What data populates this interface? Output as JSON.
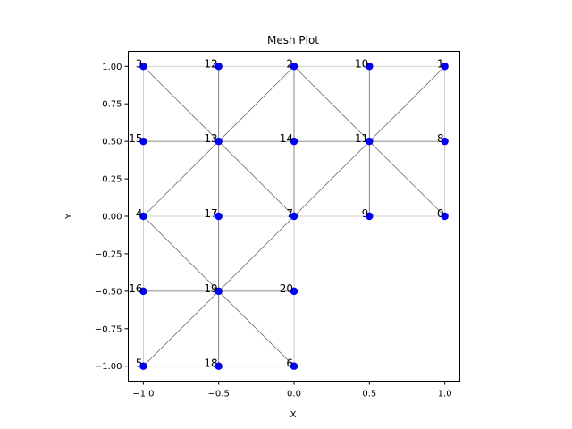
{
  "chart_data": {
    "type": "scatter",
    "title": "Mesh Plot",
    "xlabel": "X",
    "ylabel": "Y",
    "xlim": [
      -1.1,
      1.1
    ],
    "ylim": [
      -1.1,
      1.1
    ],
    "x_ticks": [
      -1.0,
      -0.5,
      0.0,
      0.5,
      1.0
    ],
    "x_tick_labels": [
      "−1.0",
      "−0.5",
      "0.0",
      "0.5",
      "1.0"
    ],
    "y_ticks": [
      -1.0,
      -0.75,
      -0.5,
      -0.25,
      0.0,
      0.25,
      0.5,
      0.75,
      1.0
    ],
    "y_tick_labels": [
      "−1.00",
      "−0.75",
      "−0.50",
      "−0.25",
      "0.00",
      "0.25",
      "0.50",
      "0.75",
      "1.00"
    ],
    "grid": false,
    "colors": {
      "points": "#0000ff",
      "diagonal_edges": "#666666",
      "boundary_edges": "#c0c0c0"
    },
    "nodes": [
      {
        "id": "0",
        "x": 1.0,
        "y": 0.0
      },
      {
        "id": "1",
        "x": 1.0,
        "y": 1.0
      },
      {
        "id": "2",
        "x": 0.0,
        "y": 1.0
      },
      {
        "id": "3",
        "x": -1.0,
        "y": 1.0
      },
      {
        "id": "4",
        "x": -1.0,
        "y": 0.0
      },
      {
        "id": "5",
        "x": -1.0,
        "y": -1.0
      },
      {
        "id": "6",
        "x": 0.0,
        "y": -1.0
      },
      {
        "id": "7",
        "x": 0.0,
        "y": 0.0
      },
      {
        "id": "8",
        "x": 1.0,
        "y": 0.5
      },
      {
        "id": "9",
        "x": 0.5,
        "y": 0.0
      },
      {
        "id": "10",
        "x": 0.5,
        "y": 1.0
      },
      {
        "id": "11",
        "x": 0.5,
        "y": 0.5
      },
      {
        "id": "12",
        "x": -0.5,
        "y": 1.0
      },
      {
        "id": "13",
        "x": -0.5,
        "y": 0.5
      },
      {
        "id": "14",
        "x": 0.0,
        "y": 0.5
      },
      {
        "id": "15",
        "x": -1.0,
        "y": 0.5
      },
      {
        "id": "16",
        "x": -1.0,
        "y": -0.5
      },
      {
        "id": "17",
        "x": -0.5,
        "y": 0.0
      },
      {
        "id": "18",
        "x": -0.5,
        "y": -1.0
      },
      {
        "id": "19",
        "x": -0.5,
        "y": -0.5
      },
      {
        "id": "20",
        "x": 0.0,
        "y": -0.5
      }
    ],
    "diagonal_edges": [
      [
        3,
        13
      ],
      [
        13,
        7
      ],
      [
        2,
        13
      ],
      [
        13,
        4
      ],
      [
        2,
        11
      ],
      [
        11,
        0
      ],
      [
        1,
        11
      ],
      [
        11,
        7
      ],
      [
        4,
        19
      ],
      [
        19,
        6
      ],
      [
        7,
        19
      ],
      [
        19,
        5
      ],
      [
        12,
        13
      ],
      [
        13,
        17
      ],
      [
        17,
        19
      ],
      [
        19,
        18
      ],
      [
        15,
        13
      ],
      [
        13,
        14
      ],
      [
        14,
        11
      ],
      [
        11,
        8
      ],
      [
        10,
        11
      ],
      [
        11,
        9
      ],
      [
        2,
        14
      ],
      [
        14,
        7
      ],
      [
        16,
        19
      ],
      [
        19,
        20
      ]
    ],
    "boundary_edges": [
      [
        3,
        12
      ],
      [
        12,
        2
      ],
      [
        2,
        10
      ],
      [
        10,
        1
      ],
      [
        1,
        8
      ],
      [
        8,
        0
      ],
      [
        0,
        9
      ],
      [
        9,
        7
      ],
      [
        7,
        20
      ],
      [
        20,
        6
      ],
      [
        6,
        18
      ],
      [
        18,
        5
      ],
      [
        5,
        16
      ],
      [
        16,
        4
      ],
      [
        4,
        15
      ],
      [
        15,
        3
      ],
      [
        4,
        17
      ],
      [
        17,
        7
      ]
    ]
  }
}
